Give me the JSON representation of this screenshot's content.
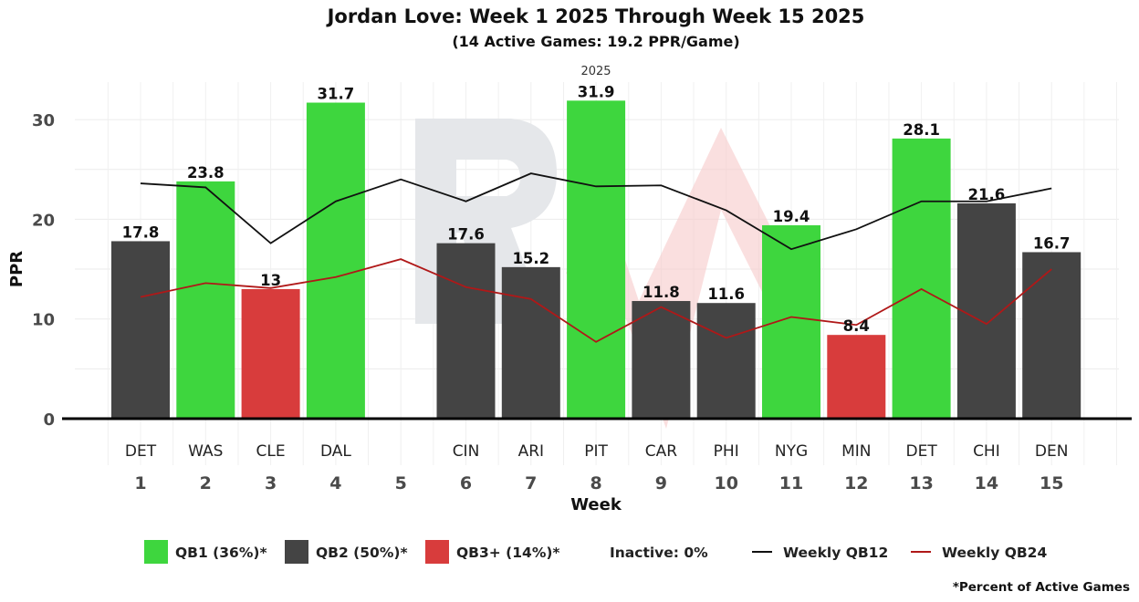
{
  "chart_data": {
    "type": "bar",
    "title": "Jordan Love: Week 1 2025 Through Week 15 2025",
    "subtitle": "(14 Active Games: 19.2 PPR/Game)",
    "facet_label": "2025",
    "xlabel": "Week",
    "ylabel": "PPR",
    "ylim": [
      0,
      33
    ],
    "yticks": [
      0,
      10,
      20,
      30
    ],
    "grid": true,
    "categories": [
      "1",
      "2",
      "3",
      "4",
      "5",
      "6",
      "7",
      "8",
      "9",
      "10",
      "11",
      "12",
      "13",
      "14",
      "15"
    ],
    "opponents": [
      "DET",
      "WAS",
      "CLE",
      "DAL",
      "",
      "CIN",
      "ARI",
      "PIT",
      "CAR",
      "PHI",
      "NYG",
      "MIN",
      "DET",
      "CHI",
      "DEN"
    ],
    "values": [
      17.8,
      23.8,
      13,
      31.7,
      null,
      17.6,
      15.2,
      31.9,
      11.8,
      11.6,
      19.4,
      8.4,
      28.1,
      21.6,
      16.7
    ],
    "value_labels": [
      "17.8",
      "23.8",
      "13",
      "31.7",
      "",
      "17.6",
      "15.2",
      "31.9",
      "11.8",
      "11.6",
      "19.4",
      "8.4",
      "28.1",
      "21.6",
      "16.7"
    ],
    "tiers": [
      "QB2",
      "QB1",
      "QB3+",
      "QB1",
      null,
      "QB2",
      "QB2",
      "QB1",
      "QB2",
      "QB2",
      "QB1",
      "QB3+",
      "QB1",
      "QB2",
      "QB2"
    ],
    "tier_colors": {
      "QB1": "#3ed63e",
      "QB2": "#444444",
      "QB3+": "#d83c3c"
    },
    "series": [
      {
        "name": "Weekly QB12",
        "type": "line",
        "color": "#111111",
        "values": [
          23.6,
          23.2,
          17.6,
          21.8,
          24.0,
          21.8,
          24.6,
          23.3,
          23.4,
          20.9,
          17.0,
          19.0,
          21.8,
          21.8,
          23.1
        ]
      },
      {
        "name": "Weekly QB24",
        "type": "line",
        "color": "#b01818",
        "values": [
          12.2,
          13.6,
          13.1,
          14.2,
          16.0,
          13.2,
          12.0,
          7.7,
          11.2,
          8.1,
          10.2,
          9.4,
          13.0,
          9.5,
          15.0
        ]
      }
    ],
    "legend": [
      {
        "kind": "swatch",
        "color": "#3ed63e",
        "label": "QB1 (36%)*"
      },
      {
        "kind": "swatch",
        "color": "#444444",
        "label": "QB2 (50%)*"
      },
      {
        "kind": "swatch",
        "color": "#d83c3c",
        "label": "QB3+ (14%)*"
      },
      {
        "kind": "text",
        "label": "Inactive: 0%"
      },
      {
        "kind": "line",
        "color": "#111111",
        "label": "Weekly QB12"
      },
      {
        "kind": "line",
        "color": "#b01818",
        "label": "Weekly QB24"
      }
    ],
    "legend_position": "bottom",
    "footnote": "*Percent of Active Games"
  }
}
